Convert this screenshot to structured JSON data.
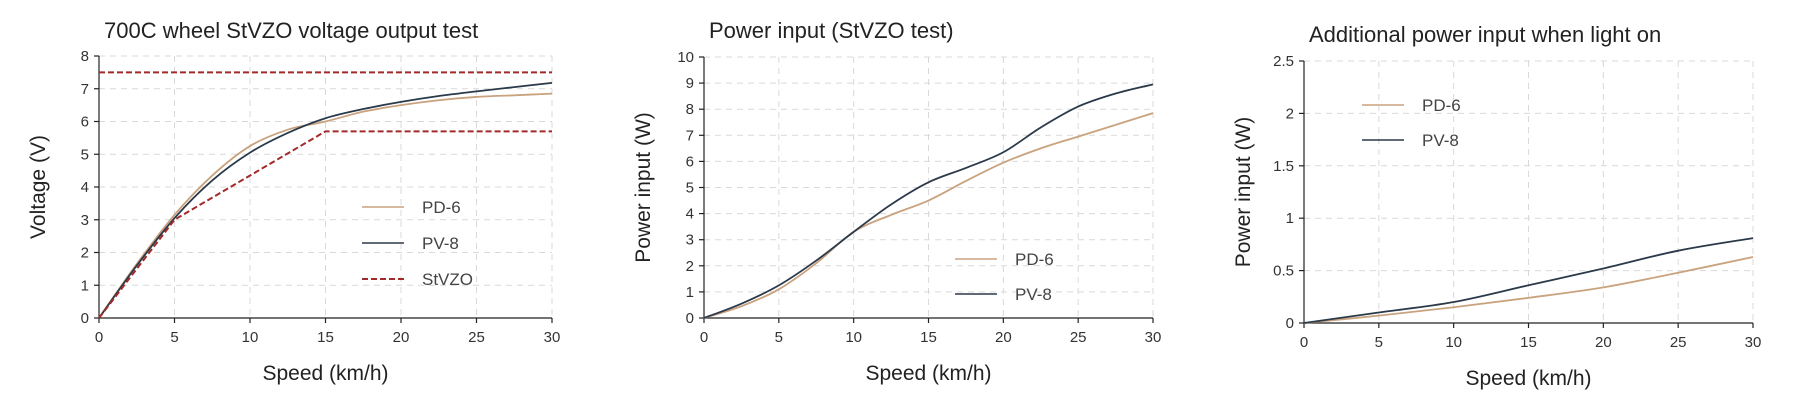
{
  "colors": {
    "pd6": "#c9a27e",
    "pv8": "#2b3a4a",
    "stvzo": "#a32a2a"
  },
  "chart_data": [
    {
      "type": "line",
      "title": "700C wheel StVZO voltage output test",
      "xlabel": "Speed (km/h)",
      "ylabel": "Voltage (V)",
      "xlim": [
        0,
        30
      ],
      "ylim": [
        0,
        8
      ],
      "xticks": [
        0,
        5,
        10,
        15,
        20,
        25,
        30
      ],
      "yticks": [
        0,
        1,
        2,
        3,
        4,
        5,
        6,
        7,
        8
      ],
      "grid": true,
      "legend_position": "center-right",
      "series": [
        {
          "name": "PD-6",
          "color_key": "pd6",
          "style": "solid",
          "x": [
            0,
            2.5,
            5,
            7.5,
            10,
            12.5,
            15,
            17.5,
            20,
            22.5,
            25,
            27.5,
            30
          ],
          "y": [
            0,
            1.65,
            3.15,
            4.35,
            5.25,
            5.75,
            6.0,
            6.3,
            6.5,
            6.65,
            6.75,
            6.8,
            6.85
          ]
        },
        {
          "name": "PV-8",
          "color_key": "pv8",
          "style": "solid",
          "x": [
            0,
            2.5,
            5,
            7.5,
            10,
            12.5,
            15,
            17.5,
            20,
            22.5,
            25,
            27.5,
            30
          ],
          "y": [
            0,
            1.6,
            3.05,
            4.2,
            5.05,
            5.65,
            6.1,
            6.38,
            6.6,
            6.78,
            6.92,
            7.05,
            7.18
          ]
        },
        {
          "name": "StVZO",
          "color_key": "stvzo",
          "style": "dashed",
          "x": [
            0,
            5,
            15,
            30
          ],
          "y": [
            0,
            3.0,
            5.7,
            5.7
          ]
        },
        {
          "name": "",
          "color_key": "stvzo",
          "style": "dashed",
          "x": [
            0,
            30
          ],
          "y": [
            7.5,
            7.5
          ]
        }
      ]
    },
    {
      "type": "line",
      "title": "Power input (StVZO test)",
      "xlabel": "Speed (km/h)",
      "ylabel": "Power input (W)",
      "xlim": [
        0,
        30
      ],
      "ylim": [
        0,
        10
      ],
      "xticks": [
        0,
        5,
        10,
        15,
        20,
        25,
        30
      ],
      "yticks": [
        0,
        1,
        2,
        3,
        4,
        5,
        6,
        7,
        8,
        9,
        10
      ],
      "grid": true,
      "legend_position": "lower-right",
      "series": [
        {
          "name": "PD-6",
          "color_key": "pd6",
          "style": "solid",
          "x": [
            0,
            2.5,
            5,
            7.5,
            10,
            12.5,
            15,
            17.5,
            20,
            22.5,
            25,
            27.5,
            30
          ],
          "y": [
            0,
            0.45,
            1.1,
            2.1,
            3.3,
            3.95,
            4.5,
            5.25,
            5.95,
            6.5,
            6.95,
            7.4,
            7.85
          ]
        },
        {
          "name": "PV-8",
          "color_key": "pv8",
          "style": "solid",
          "x": [
            0,
            2.5,
            5,
            7.5,
            10,
            12.5,
            15,
            17.5,
            20,
            22.5,
            25,
            27.5,
            30
          ],
          "y": [
            0,
            0.55,
            1.25,
            2.2,
            3.3,
            4.35,
            5.2,
            5.75,
            6.35,
            7.3,
            8.1,
            8.6,
            8.95
          ]
        }
      ]
    },
    {
      "type": "line",
      "title": "Additional power input when light on",
      "xlabel": "Speed (km/h)",
      "ylabel": "Power input (W)",
      "xlim": [
        0,
        30
      ],
      "ylim": [
        0,
        2.5
      ],
      "xticks": [
        0,
        5,
        10,
        15,
        20,
        25,
        30
      ],
      "yticks": [
        0,
        0.5,
        1,
        1.5,
        2,
        2.5
      ],
      "grid": true,
      "legend_position": "upper-left",
      "series": [
        {
          "name": "PD-6",
          "color_key": "pd6",
          "style": "solid",
          "x": [
            0,
            5,
            10,
            15,
            20,
            25,
            30
          ],
          "y": [
            0,
            0.07,
            0.15,
            0.24,
            0.34,
            0.48,
            0.63
          ]
        },
        {
          "name": "PV-8",
          "color_key": "pv8",
          "style": "solid",
          "x": [
            0,
            5,
            10,
            15,
            20,
            25,
            30
          ],
          "y": [
            0,
            0.1,
            0.2,
            0.36,
            0.52,
            0.69,
            0.81
          ]
        }
      ]
    }
  ]
}
